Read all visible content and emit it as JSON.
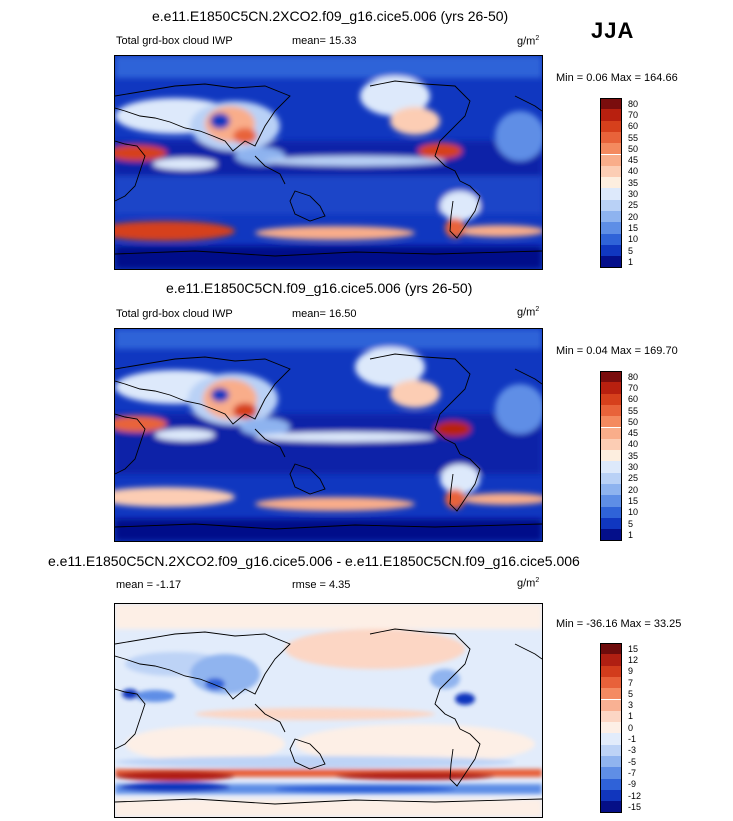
{
  "season": "JJA",
  "panels": [
    {
      "title": "e.e11.E1850C5CN.2XCO2.f09_g16.cice5.006 (yrs 26-50)",
      "variable": "Total grd-box cloud IWP",
      "mean_text": "mean=  15.33",
      "units": "g/m",
      "units_exp": "2",
      "minmax_text": "Min =   0.06 Max = 164.66",
      "colorbar": {
        "labels": [
          "80",
          "70",
          "60",
          "55",
          "50",
          "45",
          "40",
          "35",
          "30",
          "25",
          "20",
          "15",
          "10",
          "5",
          "1"
        ],
        "colors": [
          "#7a0d0d",
          "#b8200f",
          "#d6401c",
          "#e8633a",
          "#f48a5f",
          "#f9ad8a",
          "#fccdb4",
          "#fdeedf",
          "#dde9fb",
          "#b9d1f6",
          "#8eb3ef",
          "#5e8ee6",
          "#2f63d8",
          "#1037c0",
          "#040f8a"
        ]
      }
    },
    {
      "title": "e.e11.E1850C5CN.f09_g16.cice5.006 (yrs 26-50)",
      "variable": "Total grd-box cloud IWP",
      "mean_text": "mean=  16.50",
      "units": "g/m",
      "units_exp": "2",
      "minmax_text": "Min =   0.04 Max = 169.70",
      "colorbar": {
        "labels": [
          "80",
          "70",
          "60",
          "55",
          "50",
          "45",
          "40",
          "35",
          "30",
          "25",
          "20",
          "15",
          "10",
          "5",
          "1"
        ],
        "colors": [
          "#7a0d0d",
          "#b8200f",
          "#d6401c",
          "#e8633a",
          "#f48a5f",
          "#f9ad8a",
          "#fccdb4",
          "#fdeedf",
          "#dde9fb",
          "#b9d1f6",
          "#8eb3ef",
          "#5e8ee6",
          "#2f63d8",
          "#1037c0",
          "#040f8a"
        ]
      }
    },
    {
      "title": "e.e11.E1850C5CN.2XCO2.f09_g16.cice5.006 - e.e11.E1850C5CN.f09_g16.cice5.006",
      "mean_text": "mean =  -1.17",
      "rmse_text": "rmse =   4.35",
      "units": "g/m",
      "units_exp": "2",
      "minmax_text": "Min = -36.16 Max =  33.25",
      "colorbar": {
        "labels": [
          "15",
          "12",
          "9",
          "7",
          "5",
          "3",
          "1",
          "0",
          "-1",
          "-3",
          "-5",
          "-7",
          "-9",
          "-12",
          "-15"
        ],
        "colors": [
          "#6e0c0c",
          "#b01f12",
          "#d23c1c",
          "#e8613a",
          "#f48a62",
          "#f9b193",
          "#fcd6c4",
          "#fdefe6",
          "#e2ecfb",
          "#bdd3f6",
          "#90b4ef",
          "#5f8ee6",
          "#2f62d8",
          "#1136bd",
          "#050f87"
        ]
      }
    }
  ]
}
